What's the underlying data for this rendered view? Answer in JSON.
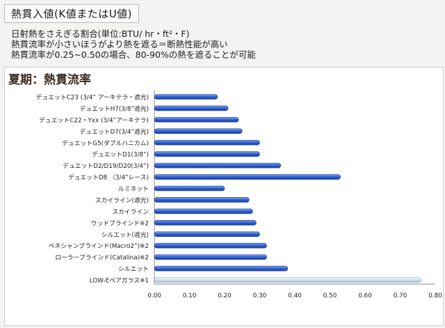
{
  "header": {
    "title": "熱貫入値(K値またはU値)",
    "line1": "日射熱をさえぎる割合(単位:BTU/ hr・ft²・F)",
    "line2": "熱貫流率が小さいほうがより熱を遮る＝断熱性能が高い",
    "line3": "熱貫流率が0.25~0.50の場合、80-90%の熱を遮ることが可能"
  },
  "colors": {
    "bar": "#2f5fd0",
    "bar_light": "#7fa4e8",
    "last_bar": "#cfe0f0"
  },
  "chart_data": {
    "type": "bar",
    "orientation": "horizontal",
    "title": "夏期：熱貫流率",
    "categories": [
      "デュエットC23 (3/4” アーキテラ・遮光)",
      "デュエットH7(3/8”遮光)",
      "デュエットC22・Yxx (3/4”アーキテラ)",
      "デュエットD7(3/4”遮光)",
      "デュエットG5(ダブルハニカム)",
      "デュエットD1(3/8”)",
      "デュエットD2/D19/D20(3/4”)",
      "デュエットD8 （3/4”レース)",
      "ルミネット",
      "スカイライン(遮光)",
      "スカイライン",
      "ウッドブラインド※2",
      "シルエット(遮光)",
      "ベネシャンブラインド(Macro2”)※2",
      "ローラーブラインド(Catalina)※2",
      "シルエット",
      "LOW-Eペアガラス※1"
    ],
    "values": [
      0.18,
      0.21,
      0.24,
      0.25,
      0.3,
      0.3,
      0.36,
      0.53,
      0.2,
      0.27,
      0.28,
      0.29,
      0.3,
      0.32,
      0.32,
      0.38,
      0.76
    ],
    "xlim": [
      0,
      0.8
    ],
    "xticks": [
      "0.00",
      "0.10",
      "0.20",
      "0.30",
      "0.40",
      "0.50",
      "0.60",
      "0.70",
      "0.80"
    ],
    "grid": false,
    "legend": "none"
  }
}
